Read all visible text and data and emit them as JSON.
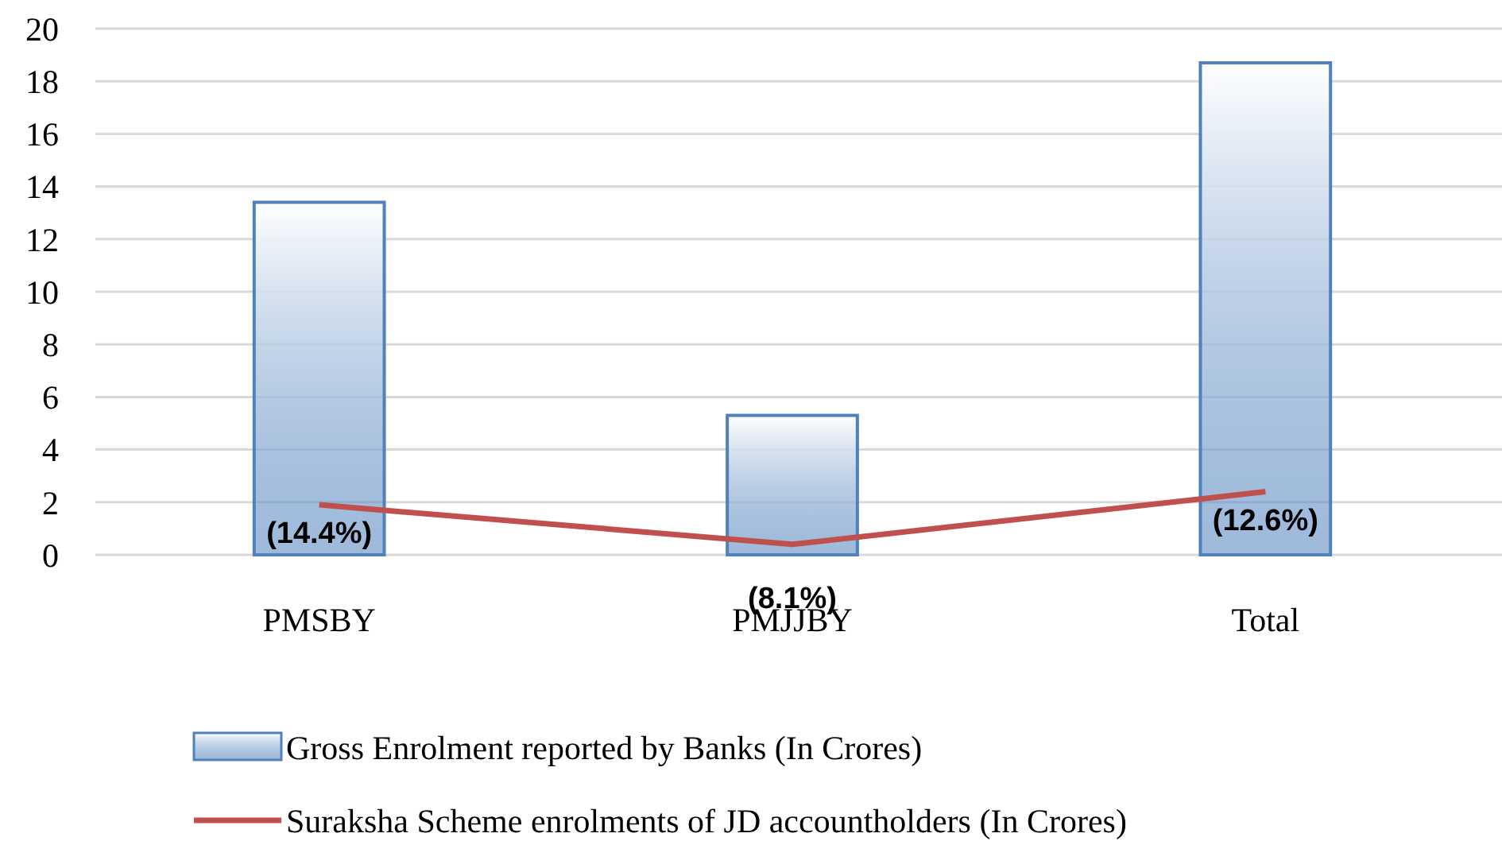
{
  "chart_data": {
    "type": "bar",
    "categories": [
      "PMSBY",
      "PMJJBY",
      "Total"
    ],
    "series": [
      {
        "name": "Gross Enrolment reported by Banks (In Crores)",
        "color": "#4f81bd",
        "values": [
          13.4,
          5.3,
          18.7
        ]
      },
      {
        "name": "Suraksha Scheme enrolments of JD accountholders (In Crores)",
        "type": "line",
        "color": "#c0504d",
        "values": [
          1.9,
          0.4,
          2.4
        ]
      }
    ],
    "annotations": [
      {
        "text": "(14.4%)",
        "x": "PMSBY",
        "y": 1.9
      },
      {
        "text": "(8.1%)",
        "x": "PMJJBY",
        "y": 0.4
      },
      {
        "text": "(12.6%)",
        "x": "Total",
        "y": 2.4
      }
    ],
    "ylim": [
      0,
      20
    ],
    "yticks": [
      0,
      2,
      4,
      6,
      8,
      10,
      12,
      14,
      16,
      18,
      20
    ],
    "grid": "y",
    "legend": "bottom"
  }
}
